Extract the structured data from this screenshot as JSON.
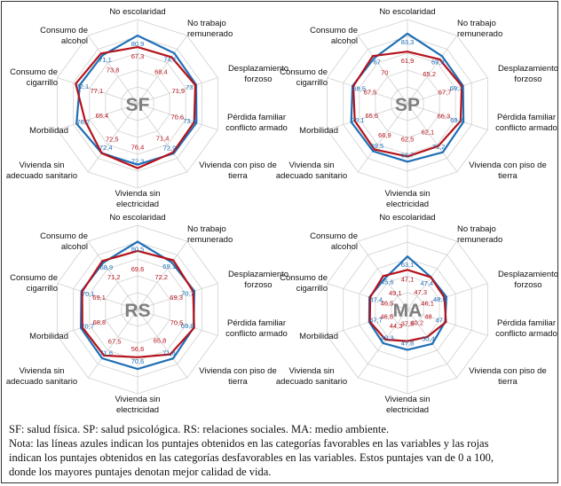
{
  "chart_data": [
    {
      "type": "radar",
      "center_label": "SF",
      "categories": [
        "No escolaridad",
        "No trabajo remunerado",
        "Desplazamiento forzoso",
        "Pérdida familiar conflicto armado",
        "Vivienda con piso de tierra",
        "Vivienda sin electricidad",
        "Vivienda sin adecuado sanitario",
        "Morbilidad",
        "Consumo de cigarrillo",
        "Consumo de alcohol"
      ],
      "series": [
        {
          "color": "#1f6fb5",
          "values": [
            80.9,
            74.1,
            73,
            73.4,
            72.9,
            72.3,
            72.4,
            76.2,
            72.1,
            71.1
          ]
        },
        {
          "color": "#b5121b",
          "values": [
            67.3,
            68.4,
            71.9,
            70.6,
            71.4,
            76.4,
            72.5,
            65.4,
            77.1,
            73.8
          ]
        }
      ]
    },
    {
      "type": "radar",
      "center_label": "SP",
      "categories": [
        "No escolaridad",
        "No trabajo remunerado",
        "Desplazamiento forzoso",
        "Pérdida familiar conflicto armado",
        "Vivienda con piso de tierra",
        "Vivienda sin electricidad",
        "Vivienda sin adecuado sanitario",
        "Morbilidad",
        "Consumo de cigarrillo",
        "Consumo de alcohol"
      ],
      "series": [
        {
          "color": "#1f6fb5",
          "values": [
            83.3,
            69.9,
            69.3,
            69.8,
            71.2,
            68.7,
            69.5,
            70.1,
            68.5,
            67
          ]
        },
        {
          "color": "#b5121b",
          "values": [
            61.9,
            65.2,
            67.7,
            66.3,
            62.1,
            62.5,
            66.9,
            65.6,
            67.5,
            70
          ]
        }
      ]
    },
    {
      "type": "radar",
      "center_label": "RS",
      "categories": [
        "No escolaridad",
        "No trabajo remunerado",
        "Desplazamiento forzoso",
        "Pérdida familiar conflicto armado",
        "Vivienda con piso de tierra",
        "Vivienda sin electricidad",
        "Vivienda sin adecuado sanitario",
        "Morbilidad",
        "Consumo de cigarrillo",
        "Consumo de alcohol"
      ],
      "series": [
        {
          "color": "#1f6fb5",
          "values": [
            80.5,
            69.1,
            70.7,
            69.8,
            71.8,
            70.6,
            71.6,
            70.7,
            70.1,
            68.9
          ]
        },
        {
          "color": "#b5121b",
          "values": [
            69.6,
            72.2,
            69.3,
            70.5,
            65.8,
            56.6,
            67.5,
            68.8,
            69.1,
            71.2
          ]
        }
      ]
    },
    {
      "type": "radar",
      "center_label": "MA",
      "categories": [
        "No escolaridad",
        "No trabajo remunerado",
        "Desplazamiento forzoso",
        "Pérdida familiar conflicto armado",
        "Vivienda con piso de tierra",
        "Vivienda sin electricidad",
        "Vivienda sin adecuado sanitario",
        "Morbilidad",
        "Consumo de cigarrillo",
        "Consumo de alcohol"
      ],
      "series": [
        {
          "color": "#1f6fb5",
          "values": [
            63.1,
            47.4,
            48.6,
            47,
            50.4,
            47.8,
            49.3,
            47.7,
            47.4,
            45.6
          ]
        },
        {
          "color": "#b5121b",
          "values": [
            47.1,
            47.3,
            46.1,
            48,
            40.2,
            37.5,
            44.3,
            46.8,
            46.5,
            49.1
          ]
        }
      ]
    }
  ],
  "caption": {
    "line1": "SF: salud física. SP: salud psicológica. RS: relaciones sociales. MA: medio ambiente.",
    "line2": "Nota: las líneas azules indican los puntajes obtenidos en las categorías favorables en las variables y las rojas",
    "line3": "indican los puntajes obtenidos en las categorías desfavorables en las variables. Estos puntajes van de 0 a 100,",
    "line4": "donde los mayores puntajes denotan mejor calidad de vida."
  }
}
